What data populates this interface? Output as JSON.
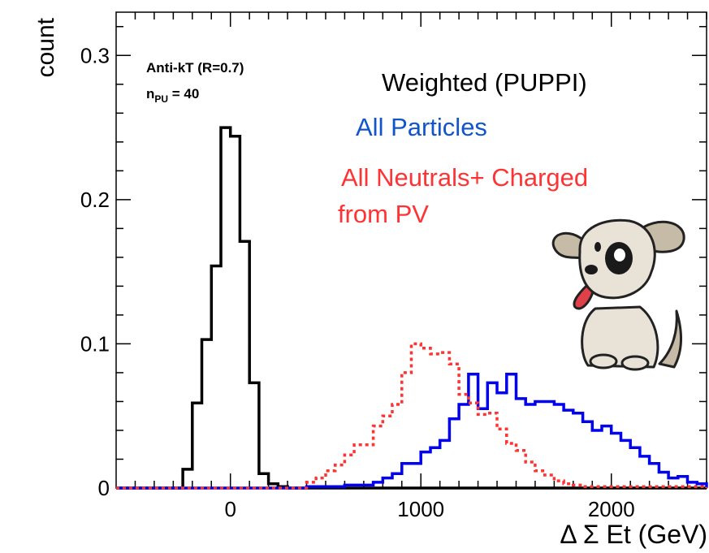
{
  "chart_data": {
    "type": "histogram",
    "xlabel": "Δ Σ Et (GeV)",
    "ylabel": "count",
    "xlim": [
      -600,
      2500
    ],
    "ylim": [
      0,
      0.33
    ],
    "x_ticks": [
      {
        "value": 0,
        "label": "0"
      },
      {
        "value": 1000,
        "label": "1000"
      },
      {
        "value": 2000,
        "label": "2000"
      }
    ],
    "y_ticks": [
      {
        "value": 0,
        "label": "0"
      },
      {
        "value": 0.1,
        "label": "0.1"
      },
      {
        "value": 0.2,
        "label": "0.2"
      },
      {
        "value": 0.3,
        "label": "0.3"
      }
    ],
    "annotations": {
      "algo": "Anti-kT (R=0.7)",
      "npu_prefix": "n",
      "npu_sub": "PU",
      "npu_suffix": " = 40"
    },
    "bin_width": 50,
    "series": [
      {
        "name": "Weighted (PUPPI)",
        "color": "#000000",
        "style": "solid",
        "bins": [
          [
            -600,
            0
          ],
          [
            -250,
            0.013
          ],
          [
            -200,
            0.059
          ],
          [
            -150,
            0.103
          ],
          [
            -100,
            0.154
          ],
          [
            -50,
            0.25
          ],
          [
            0,
            0.244
          ],
          [
            50,
            0.171
          ],
          [
            100,
            0.073
          ],
          [
            150,
            0.01
          ],
          [
            200,
            0.003
          ],
          [
            250,
            0.001
          ],
          [
            300,
            0.0
          ],
          [
            2500,
            0
          ]
        ]
      },
      {
        "name": "All Particles",
        "color": "#0000ee",
        "style": "solid",
        "bins": [
          [
            -600,
            0
          ],
          [
            400,
            0.001
          ],
          [
            600,
            0.002
          ],
          [
            750,
            0.004
          ],
          [
            800,
            0.007
          ],
          [
            850,
            0.01
          ],
          [
            900,
            0.017
          ],
          [
            950,
            0.017
          ],
          [
            1000,
            0.025
          ],
          [
            1050,
            0.028
          ],
          [
            1100,
            0.033
          ],
          [
            1150,
            0.048
          ],
          [
            1200,
            0.058
          ],
          [
            1250,
            0.079
          ],
          [
            1300,
            0.055
          ],
          [
            1350,
            0.073
          ],
          [
            1400,
            0.066
          ],
          [
            1450,
            0.079
          ],
          [
            1500,
            0.062
          ],
          [
            1550,
            0.058
          ],
          [
            1600,
            0.06
          ],
          [
            1650,
            0.06
          ],
          [
            1700,
            0.058
          ],
          [
            1750,
            0.054
          ],
          [
            1800,
            0.052
          ],
          [
            1850,
            0.046
          ],
          [
            1900,
            0.04
          ],
          [
            1950,
            0.043
          ],
          [
            2000,
            0.038
          ],
          [
            2050,
            0.033
          ],
          [
            2100,
            0.028
          ],
          [
            2150,
            0.022
          ],
          [
            2200,
            0.017
          ],
          [
            2250,
            0.011
          ],
          [
            2300,
            0.007
          ],
          [
            2350,
            0.008
          ],
          [
            2400,
            0.004
          ],
          [
            2450,
            0.003
          ],
          [
            2500,
            0
          ]
        ]
      },
      {
        "name": "All Neutrals+ Charged from PV",
        "color": "#ff3333",
        "style": "dotted",
        "bins": [
          [
            -600,
            0
          ],
          [
            400,
            0.004
          ],
          [
            450,
            0.007
          ],
          [
            500,
            0.012
          ],
          [
            550,
            0.016
          ],
          [
            600,
            0.023
          ],
          [
            650,
            0.03
          ],
          [
            700,
            0.03
          ],
          [
            750,
            0.043
          ],
          [
            800,
            0.05
          ],
          [
            850,
            0.058
          ],
          [
            900,
            0.08
          ],
          [
            950,
            0.1
          ],
          [
            1000,
            0.097
          ],
          [
            1050,
            0.093
          ],
          [
            1100,
            0.094
          ],
          [
            1150,
            0.086
          ],
          [
            1200,
            0.065
          ],
          [
            1250,
            0.059
          ],
          [
            1300,
            0.051
          ],
          [
            1350,
            0.052
          ],
          [
            1400,
            0.041
          ],
          [
            1450,
            0.031
          ],
          [
            1500,
            0.026
          ],
          [
            1550,
            0.018
          ],
          [
            1600,
            0.012
          ],
          [
            1650,
            0.009
          ],
          [
            1700,
            0.005
          ],
          [
            1750,
            0.003
          ],
          [
            1800,
            0.002
          ],
          [
            1850,
            0.001
          ],
          [
            2500,
            0
          ]
        ]
      }
    ],
    "legend": [
      {
        "label": "Weighted (PUPPI)",
        "color": "#000000"
      },
      {
        "label": "All Particles",
        "color": "#1155cc"
      },
      {
        "label": "All Neutrals+ Charged",
        "color": "#ff3333"
      },
      {
        "label": "from PV",
        "color": "#ff3333"
      }
    ],
    "decoration": "cartoon-dog"
  }
}
